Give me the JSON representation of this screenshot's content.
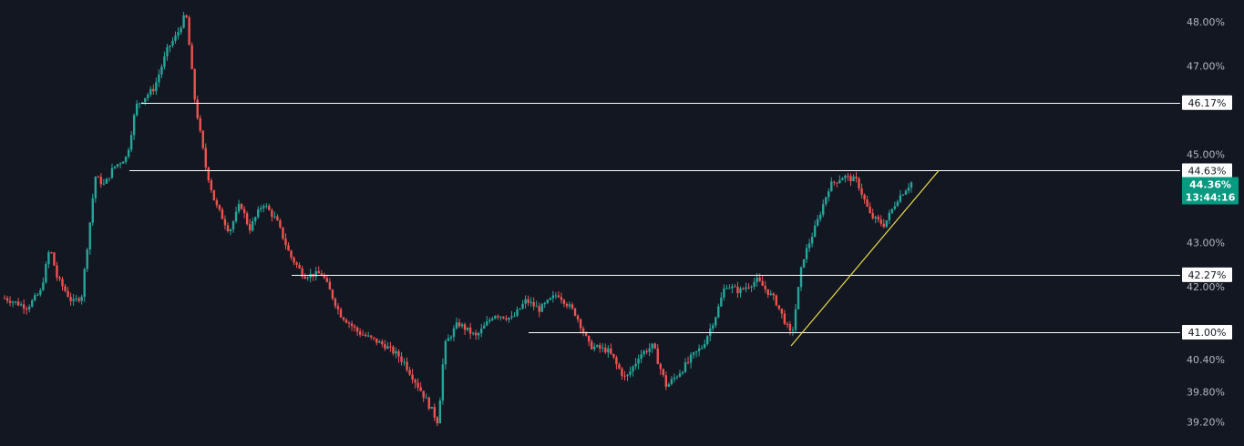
{
  "chart_data": {
    "type": "candlestick",
    "y_axis_ticks": [
      {
        "label": "48.00%",
        "value": 48.0
      },
      {
        "label": "47.00%",
        "value": 47.0
      },
      {
        "label": "45.00%",
        "value": 45.0
      },
      {
        "label": "43.00%",
        "value": 43.0
      },
      {
        "label": "42.00%",
        "value": 42.0
      },
      {
        "label": "40.40%",
        "value": 40.4
      },
      {
        "label": "39.80%",
        "value": 39.8
      },
      {
        "label": "39.20%",
        "value": 39.2
      }
    ],
    "horizontal_levels": [
      {
        "label": "46.17%",
        "value": 46.17
      },
      {
        "label": "44.63%",
        "value": 44.63
      },
      {
        "label": "42.27%",
        "value": 42.27
      },
      {
        "label": "41.00%",
        "value": 41.0
      }
    ],
    "last_price": {
      "label": "44.36%",
      "countdown": "13:44:16",
      "value": 44.36
    },
    "trendline": {
      "from": {
        "x": 0.86,
        "y": 40.7
      },
      "to": {
        "x": 1.02,
        "y": 44.63
      }
    },
    "price_path": [
      [
        0.0,
        41.75
      ],
      [
        0.025,
        41.55
      ],
      [
        0.04,
        41.9
      ],
      [
        0.05,
        42.9
      ],
      [
        0.058,
        42.2
      ],
      [
        0.075,
        41.65
      ],
      [
        0.085,
        41.8
      ],
      [
        0.1,
        44.5
      ],
      [
        0.11,
        44.3
      ],
      [
        0.12,
        44.7
      ],
      [
        0.135,
        44.95
      ],
      [
        0.145,
        46.1
      ],
      [
        0.165,
        46.5
      ],
      [
        0.18,
        47.4
      ],
      [
        0.19,
        47.7
      ],
      [
        0.2,
        48.2
      ],
      [
        0.21,
        46.2
      ],
      [
        0.222,
        44.7
      ],
      [
        0.232,
        43.9
      ],
      [
        0.248,
        43.25
      ],
      [
        0.26,
        43.9
      ],
      [
        0.27,
        43.3
      ],
      [
        0.285,
        43.9
      ],
      [
        0.3,
        43.5
      ],
      [
        0.315,
        42.7
      ],
      [
        0.33,
        42.25
      ],
      [
        0.35,
        42.3
      ],
      [
        0.37,
        41.4
      ],
      [
        0.39,
        41.0
      ],
      [
        0.42,
        40.7
      ],
      [
        0.44,
        40.4
      ],
      [
        0.46,
        39.8
      ],
      [
        0.478,
        39.2
      ],
      [
        0.485,
        40.7
      ],
      [
        0.5,
        41.2
      ],
      [
        0.52,
        40.9
      ],
      [
        0.54,
        41.4
      ],
      [
        0.56,
        41.3
      ],
      [
        0.575,
        41.7
      ],
      [
        0.59,
        41.5
      ],
      [
        0.61,
        41.85
      ],
      [
        0.63,
        41.4
      ],
      [
        0.645,
        40.7
      ],
      [
        0.665,
        40.6
      ],
      [
        0.685,
        40.05
      ],
      [
        0.7,
        40.5
      ],
      [
        0.715,
        40.7
      ],
      [
        0.73,
        39.9
      ],
      [
        0.75,
        40.3
      ],
      [
        0.77,
        40.7
      ],
      [
        0.785,
        41.4
      ],
      [
        0.795,
        42.05
      ],
      [
        0.81,
        41.9
      ],
      [
        0.83,
        42.15
      ],
      [
        0.85,
        41.7
      ],
      [
        0.868,
        40.9
      ],
      [
        0.88,
        42.6
      ],
      [
        0.895,
        43.4
      ],
      [
        0.91,
        44.3
      ],
      [
        0.925,
        44.5
      ],
      [
        0.94,
        44.4
      ],
      [
        0.955,
        43.6
      ],
      [
        0.97,
        43.4
      ],
      [
        0.985,
        44.0
      ],
      [
        1.0,
        44.36
      ]
    ]
  }
}
